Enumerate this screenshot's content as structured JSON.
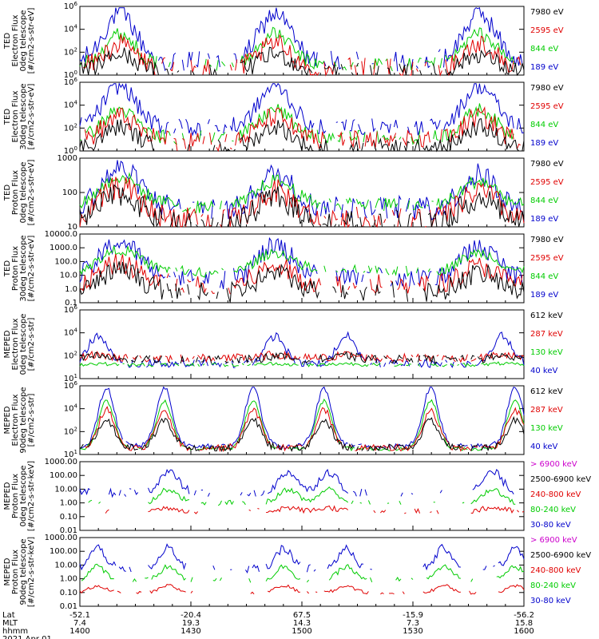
{
  "chart_data": {
    "type": "line",
    "footer": {
      "rows": [
        {
          "label": "Lat",
          "values": [
            "-52.1",
            "-20.4",
            "67.5",
            "-15.9",
            "-56.2"
          ]
        },
        {
          "label": "MLT",
          "values": [
            "7.4",
            "19.3",
            "14.3",
            "7.3",
            "15.8"
          ]
        },
        {
          "label": "hhmm",
          "values": [
            "1400",
            "1430",
            "1500",
            "1530",
            "1600"
          ]
        }
      ],
      "date": "2021 Apr 01"
    },
    "x_range_hhmm": [
      "1400",
      "1600"
    ],
    "panels": [
      {
        "ylabel": [
          "TED",
          "Electron Flux",
          "0deg telescope",
          "[#/cm2-s-str-eV]"
        ],
        "ylog": true,
        "yrange": [
          1,
          1000000
        ],
        "yticks": [
          "10^0",
          "10^2",
          "10^4",
          "10^6"
        ],
        "legend": [
          {
            "label": "7980 eV",
            "color": "#000000"
          },
          {
            "label": "2595 eV",
            "color": "#e00000"
          },
          {
            "label": "844 eV",
            "color": "#00cc00"
          },
          {
            "label": "189 eV",
            "color": "#0000cc"
          }
        ]
      },
      {
        "ylabel": [
          "TED",
          "Electron Flux",
          "30deg telescope",
          "[#/cm2-s-str-eV]"
        ],
        "ylog": true,
        "yrange": [
          1,
          1000000
        ],
        "yticks": [
          "10^0",
          "10^2",
          "10^4",
          "10^6"
        ],
        "legend": [
          {
            "label": "7980 eV",
            "color": "#000000"
          },
          {
            "label": "2595 eV",
            "color": "#e00000"
          },
          {
            "label": "844 eV",
            "color": "#00cc00"
          },
          {
            "label": "189 eV",
            "color": "#0000cc"
          }
        ]
      },
      {
        "ylabel": [
          "TED",
          "Proton Flux",
          "0deg telescope",
          "[#/cm2-s-str-eV]"
        ],
        "ylog": true,
        "yrange": [
          1,
          3000
        ],
        "yticks": [
          "1000",
          "100",
          "10"
        ],
        "legend": [
          {
            "label": "7980 eV",
            "color": "#000000"
          },
          {
            "label": "2595 eV",
            "color": "#e00000"
          },
          {
            "label": "844 eV",
            "color": "#00cc00"
          },
          {
            "label": "189 eV",
            "color": "#0000cc"
          }
        ]
      },
      {
        "ylabel": [
          "TED",
          "Proton Flux",
          "30deg telescope",
          "[#/cm2-s-str-eV]"
        ],
        "ylog": true,
        "yrange": [
          0.1,
          10000
        ],
        "yticks": [
          "10000.0",
          "1000.0",
          "100.0",
          "10.0",
          "1.0",
          "0.1"
        ],
        "legend": [
          {
            "label": "7980 eV",
            "color": "#000000"
          },
          {
            "label": "2595 eV",
            "color": "#e00000"
          },
          {
            "label": "844 eV",
            "color": "#00cc00"
          },
          {
            "label": "189 eV",
            "color": "#0000cc"
          }
        ]
      },
      {
        "ylabel": [
          "MEPED",
          "Electron Flux",
          "0deg telescope",
          "[#/cm2-s-str]"
        ],
        "ylog": true,
        "yrange": [
          10,
          1000000
        ],
        "yticks": [
          "10^6",
          "10^4",
          "10^2",
          "10^1"
        ],
        "legend": [
          {
            "label": "612 keV",
            "color": "#000000"
          },
          {
            "label": "287 keV",
            "color": "#e00000"
          },
          {
            "label": "130 keV",
            "color": "#00cc00"
          },
          {
            "label": "40 keV",
            "color": "#0000cc"
          }
        ]
      },
      {
        "ylabel": [
          "MEPED",
          "Electron Flux",
          "90deg telescope",
          "[#/cm2-s-str]"
        ],
        "ylog": true,
        "yrange": [
          10,
          1000000
        ],
        "yticks": [
          "10^6",
          "10^4",
          "10^2",
          "10^1"
        ],
        "legend": [
          {
            "label": "612 keV",
            "color": "#000000"
          },
          {
            "label": "287 keV",
            "color": "#e00000"
          },
          {
            "label": "130 keV",
            "color": "#00cc00"
          },
          {
            "label": "40 keV",
            "color": "#0000cc"
          }
        ]
      },
      {
        "ylabel": [
          "MEPED",
          "Proton Flux",
          "0deg telescope",
          "[#/cm2-s-str-keV]"
        ],
        "ylog": true,
        "yrange": [
          0.01,
          1000
        ],
        "yticks": [
          "1000.00",
          "100.00",
          "10.00",
          "1.00",
          "0.10",
          "0.01"
        ],
        "legend": [
          {
            "label": "> 6900 keV",
            "color": "#cc00cc"
          },
          {
            "label": "2500-6900 keV",
            "color": "#000000"
          },
          {
            "label": "240-800 keV",
            "color": "#e00000"
          },
          {
            "label": "80-240 keV",
            "color": "#00cc00"
          },
          {
            "label": "30-80 keV",
            "color": "#0000cc"
          }
        ]
      },
      {
        "ylabel": [
          "MEPED",
          "Proton Flux",
          "90deg telescope",
          "[#/cm2-s-str-keV]"
        ],
        "ylog": true,
        "yrange": [
          0.01,
          1000
        ],
        "yticks": [
          "1000.00",
          "100.00",
          "10.00",
          "1.00",
          "0.10",
          "0.01"
        ],
        "legend": [
          {
            "label": "> 6900 keV",
            "color": "#cc00cc"
          },
          {
            "label": "2500-6900 keV",
            "color": "#000000"
          },
          {
            "label": "240-800 keV",
            "color": "#e00000"
          },
          {
            "label": "80-240 keV",
            "color": "#00cc00"
          },
          {
            "label": "30-80 keV",
            "color": "#0000cc"
          }
        ]
      }
    ]
  }
}
